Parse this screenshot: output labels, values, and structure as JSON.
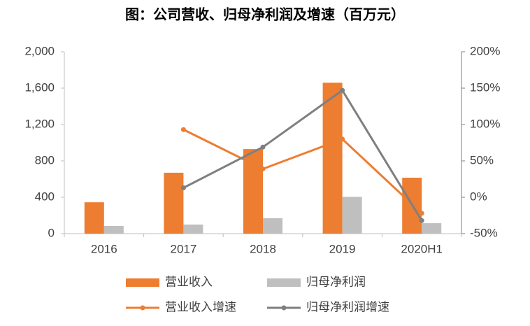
{
  "chart_data": {
    "type": "bar",
    "title": "图：公司营收、归母净利润及增速（百万元）",
    "categories": [
      "2016",
      "2017",
      "2018",
      "2019",
      "2020H1"
    ],
    "series": [
      {
        "name": "营业收入",
        "type": "bar",
        "color": "#ED7D31",
        "values": [
          345,
          670,
          930,
          1660,
          615
        ]
      },
      {
        "name": "归母净利润",
        "type": "bar",
        "color": "#BFBFBF",
        "values": [
          85,
          100,
          170,
          405,
          115
        ]
      },
      {
        "name": "营业收入增速",
        "type": "line",
        "axis": "y2",
        "color": "#ED7D31",
        "values": [
          null,
          93,
          39,
          80,
          -22
        ]
      },
      {
        "name": "归母净利润增速",
        "type": "line",
        "axis": "y2",
        "color": "#7F7F7F",
        "values": [
          null,
          13,
          69,
          147,
          -32
        ]
      }
    ],
    "ylim": [
      0,
      2000
    ],
    "yticks": [
      0,
      400,
      800,
      {
        "value": 1200,
        "label": "1,200"
      },
      {
        "value": 1600,
        "label": "1,600"
      },
      {
        "value": 2000,
        "label": "2,000"
      }
    ],
    "y2lim": [
      -50,
      200
    ],
    "y2ticks": [
      {
        "value": -50,
        "label": "-50%"
      },
      {
        "value": 0,
        "label": "0%"
      },
      {
        "value": 50,
        "label": "50%"
      },
      {
        "value": 100,
        "label": "100%"
      },
      {
        "value": 150,
        "label": "150%"
      },
      {
        "value": 200,
        "label": "200%"
      }
    ],
    "grid": false
  }
}
